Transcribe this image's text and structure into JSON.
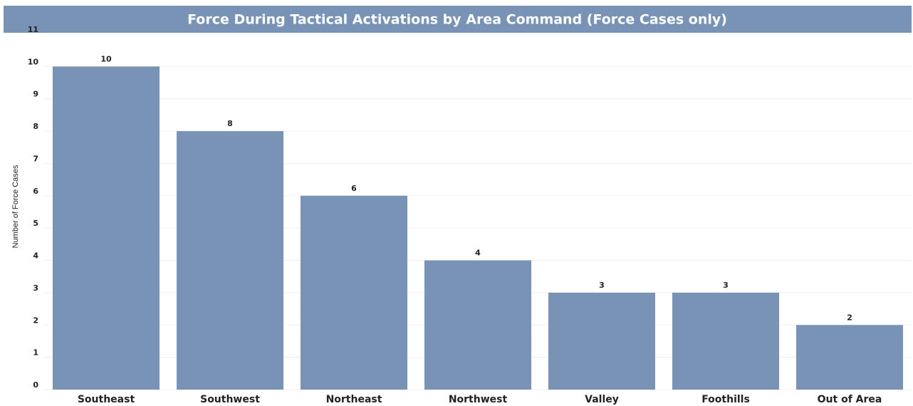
{
  "chart_data": {
    "type": "bar",
    "title": "Force During Tactical Activations by Area Command (Force Cases only)",
    "y_label": "Number of Force Cases",
    "categories": [
      "Southeast",
      "Southwest",
      "Northeast",
      "Northwest",
      "Valley",
      "Foothills",
      "Out of Area"
    ],
    "values": [
      10,
      8,
      6,
      4,
      3,
      3,
      2
    ],
    "color": "#7893b6",
    "ylim": [
      0,
      11
    ],
    "yticks": [
      0,
      1,
      2,
      3,
      4,
      5,
      6,
      7,
      8,
      9,
      10,
      11
    ],
    "grid": true
  }
}
